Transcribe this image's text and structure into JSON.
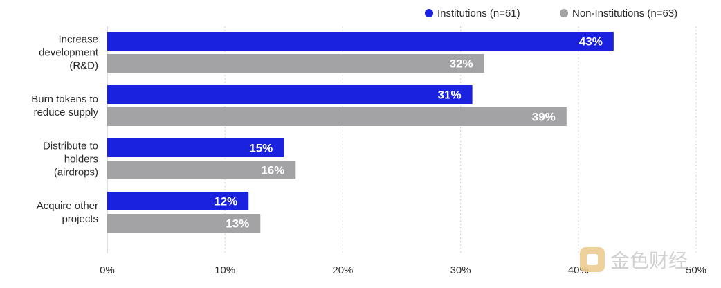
{
  "chart_data": {
    "type": "bar",
    "orientation": "horizontal",
    "categories": [
      [
        "Increase",
        "development",
        "(R&D)"
      ],
      [
        "Burn tokens to",
        "reduce supply"
      ],
      [
        "Distribute to",
        "holders",
        "(airdrops)"
      ],
      [
        "Acquire other",
        "projects"
      ]
    ],
    "series": [
      {
        "name": "Institutions (n=61)",
        "color": "#1a22e0",
        "values": [
          43,
          31,
          15,
          12
        ]
      },
      {
        "name": "Non-Institutions (n=63)",
        "color": "#a3a3a6",
        "values": [
          32,
          39,
          16,
          13
        ]
      }
    ],
    "value_labels": [
      [
        "43%",
        "31%",
        "15%",
        "12%"
      ],
      [
        "32%",
        "39%",
        "16%",
        "13%"
      ]
    ],
    "x_ticks": [
      0,
      10,
      20,
      30,
      40,
      50
    ],
    "x_tick_labels": [
      "0%",
      "10%",
      "20%",
      "30%",
      "40%",
      "50%"
    ],
    "xlim": [
      0,
      50
    ],
    "grid": "vertical dashed",
    "legend_position": "top-right"
  },
  "watermark": {
    "text": "金色财经"
  }
}
